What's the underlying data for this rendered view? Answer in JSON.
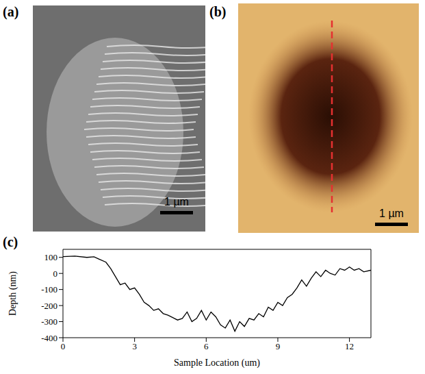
{
  "panels": [
    {
      "label": "(a)",
      "scale_bar": "1 µm"
    },
    {
      "label": "(b)",
      "scale_bar": "1 µm"
    }
  ],
  "chart_data": {
    "panel_label": "(c)",
    "type": "line",
    "x_label": "Sample Location (um)",
    "y_label": "Depth (nm)",
    "xlim": [
      0,
      12.9
    ],
    "xticks": [
      0,
      3,
      6,
      9,
      12
    ],
    "ylim": [
      -400,
      150
    ],
    "yticks": [
      -400,
      -300,
      -200,
      -100,
      0,
      100
    ],
    "color": "#000000",
    "x": [
      0,
      0.5,
      1.0,
      1.3,
      1.5,
      1.8,
      2.0,
      2.2,
      2.4,
      2.6,
      2.8,
      3.0,
      3.2,
      3.4,
      3.6,
      3.8,
      4.0,
      4.2,
      4.4,
      4.6,
      4.8,
      5.0,
      5.2,
      5.4,
      5.6,
      5.8,
      6.0,
      6.2,
      6.4,
      6.6,
      6.8,
      7.0,
      7.2,
      7.4,
      7.6,
      7.8,
      8.0,
      8.2,
      8.4,
      8.6,
      8.8,
      9.0,
      9.2,
      9.4,
      9.6,
      9.8,
      10.0,
      10.2,
      10.4,
      10.6,
      10.8,
      11.0,
      11.2,
      11.4,
      11.6,
      11.8,
      12.0,
      12.2,
      12.4,
      12.6,
      12.9
    ],
    "values": [
      105,
      108,
      100,
      104,
      90,
      70,
      30,
      -20,
      -70,
      -60,
      -100,
      -90,
      -130,
      -180,
      -200,
      -230,
      -220,
      -250,
      -260,
      -275,
      -290,
      -280,
      -240,
      -300,
      -280,
      -230,
      -290,
      -240,
      -270,
      -320,
      -340,
      -290,
      -360,
      -300,
      -330,
      -280,
      -290,
      -250,
      -270,
      -210,
      -230,
      -180,
      -200,
      -150,
      -130,
      -90,
      -40,
      -80,
      -30,
      10,
      -20,
      20,
      0,
      -10,
      30,
      20,
      40,
      20,
      30,
      10,
      20
    ]
  }
}
